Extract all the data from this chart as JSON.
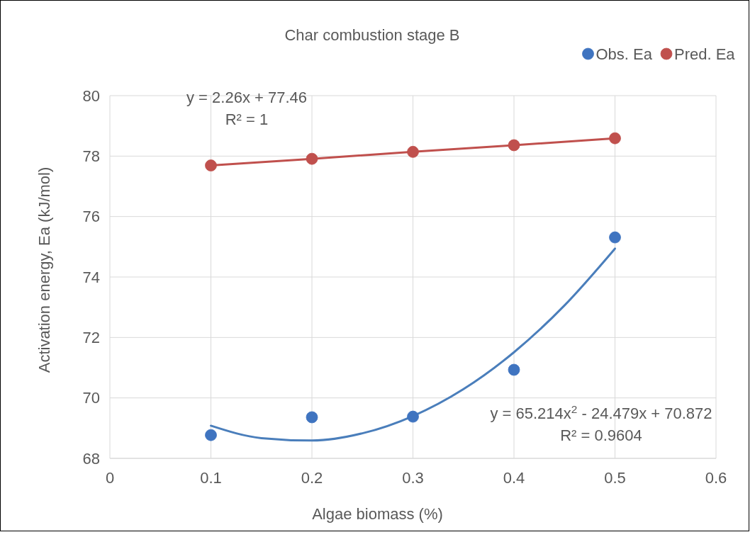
{
  "chart_data": {
    "type": "scatter",
    "title": "Char combustion stage B",
    "xlabel": "Algae biomass (%)",
    "ylabel": "Activation energy, Ea (kJ/mol)",
    "x": [
      0.1,
      0.2,
      0.3,
      0.4,
      0.5
    ],
    "series": [
      {
        "name": "Obs. Ea",
        "color": "#3f74c0",
        "marker": "circle",
        "values": [
          68.77,
          69.36,
          69.38,
          70.93,
          75.31
        ]
      },
      {
        "name": "Pred. Ea",
        "type": "line",
        "color": "#c0504d",
        "marker": "circle",
        "values": [
          77.69,
          77.91,
          78.14,
          78.36,
          78.59
        ]
      },
      {
        "type": "line",
        "color": "#4a7ebb",
        "marker": "none",
        "x": [
          0.1,
          0.15,
          0.2,
          0.25,
          0.3,
          0.35,
          0.4,
          0.45,
          0.5
        ],
        "values": [
          69.08,
          68.67,
          68.59,
          68.83,
          69.4,
          70.29,
          71.51,
          73.06,
          74.94
        ]
      }
    ],
    "xlim": [
      0,
      0.6
    ],
    "xticks": [
      0,
      0.1,
      0.2,
      0.3,
      0.4,
      0.5,
      0.6
    ],
    "ylim": [
      68,
      80
    ],
    "yticks": [
      68,
      70,
      72,
      74,
      76,
      78,
      80
    ],
    "grid": true,
    "legend": "top right",
    "line_style": "solid",
    "annotations": [
      "y = 2.26x + 77.46",
      "R² = 1",
      "y = 65.214x$^{2}$ - 24.479x + 70.872",
      "R² = 0.9604"
    ]
  }
}
